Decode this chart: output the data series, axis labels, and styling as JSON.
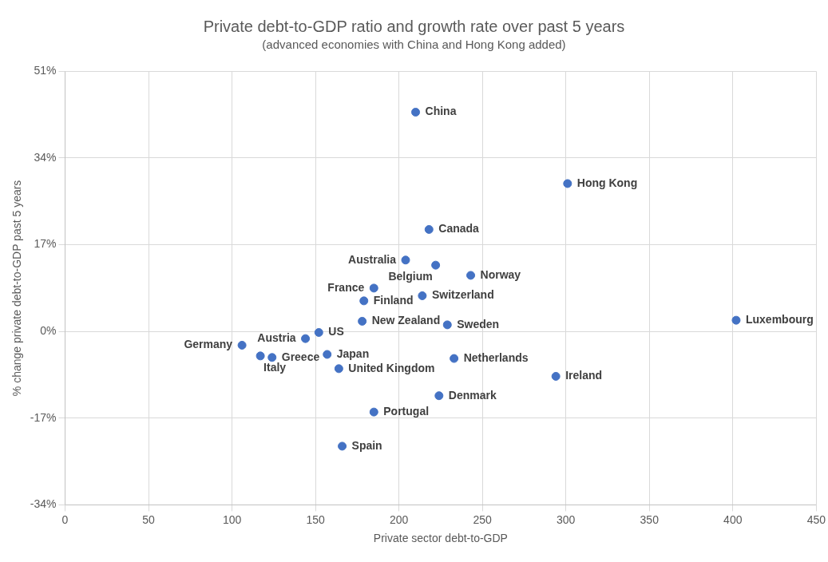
{
  "chart_data": {
    "type": "scatter",
    "title": "Private debt-to-GDP ratio and growth rate over past 5 years",
    "subtitle": "(advanced economies with China and Hong Kong added)",
    "xlabel": "Private sector debt-to-GDP",
    "ylabel": "% change private debt-to-GDP past 5 years",
    "x": [
      210,
      301,
      218,
      204,
      222,
      243,
      185,
      179,
      214,
      178,
      229,
      152,
      402,
      144,
      106,
      117,
      124,
      157,
      164,
      233,
      294,
      224,
      185,
      166
    ],
    "values": [
      43,
      29,
      20,
      14,
      13,
      11,
      8.5,
      6,
      7,
      2,
      1.3,
      -0.2,
      2.2,
      -1.4,
      -2.7,
      -4.8,
      -5.1,
      -4.5,
      -7.3,
      -5.3,
      -8.8,
      -12.6,
      -15.8,
      -22.5
    ],
    "color": "#4472c4",
    "marker": "circle",
    "grid": true,
    "legend": false,
    "xlim": [
      0,
      450
    ],
    "xticks": [
      0,
      50,
      100,
      150,
      200,
      250,
      300,
      350,
      400,
      450
    ],
    "ylim": [
      -34,
      51
    ],
    "yticks": [
      {
        "value": -34,
        "label": "-34%"
      },
      {
        "value": -17,
        "label": "-17%"
      },
      {
        "value": 0,
        "label": "0%"
      },
      {
        "value": 17,
        "label": "17%"
      },
      {
        "value": 34,
        "label": "34%"
      },
      {
        "value": 51,
        "label": "51%"
      }
    ],
    "annotations": [
      {
        "text": "China",
        "x": 210,
        "y": 43
      },
      {
        "text": "Hong Kong",
        "x": 301,
        "y": 29
      },
      {
        "text": "Canada",
        "x": 218,
        "y": 20
      },
      {
        "text": "Australia",
        "x": 204,
        "y": 14
      },
      {
        "text": "Belgium",
        "x": 222,
        "y": 13
      },
      {
        "text": "Norway",
        "x": 243,
        "y": 11
      },
      {
        "text": "France",
        "x": 185,
        "y": 8.5
      },
      {
        "text": "Finland",
        "x": 179,
        "y": 6
      },
      {
        "text": "Switzerland",
        "x": 214,
        "y": 7
      },
      {
        "text": "New Zealand",
        "x": 178,
        "y": 2
      },
      {
        "text": "Sweden",
        "x": 229,
        "y": 1.3
      },
      {
        "text": "US",
        "x": 152,
        "y": -0.2
      },
      {
        "text": "Luxembourg",
        "x": 402,
        "y": 2.2
      },
      {
        "text": "Austria",
        "x": 144,
        "y": -1.4
      },
      {
        "text": "Germany",
        "x": 106,
        "y": -2.7
      },
      {
        "text": "Italy",
        "x": 117,
        "y": -4.8
      },
      {
        "text": "Greece",
        "x": 124,
        "y": -5.1
      },
      {
        "text": "Japan",
        "x": 157,
        "y": -4.5
      },
      {
        "text": "United Kingdom",
        "x": 164,
        "y": -7.3
      },
      {
        "text": "Netherlands",
        "x": 233,
        "y": -5.3
      },
      {
        "text": "Ireland",
        "x": 294,
        "y": -8.8
      },
      {
        "text": "Denmark",
        "x": 224,
        "y": -12.6
      },
      {
        "text": "Portugal",
        "x": 185,
        "y": -15.8
      },
      {
        "text": "Spain",
        "x": 166,
        "y": -22.5
      }
    ]
  }
}
